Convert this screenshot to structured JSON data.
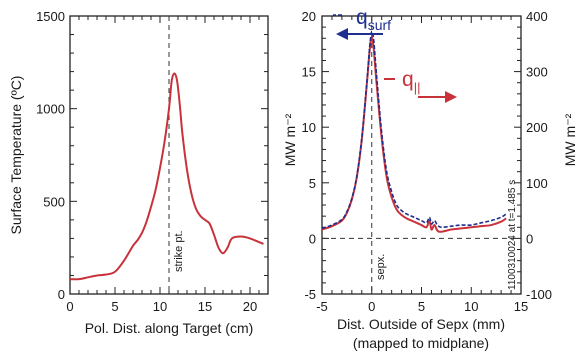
{
  "chart_data": [
    {
      "type": "line",
      "ylabel": "Surface Temperature (ºC)",
      "xlabel": "Pol. Dist. along Target (cm)",
      "xlim": [
        0,
        22
      ],
      "ylim": [
        0,
        1500
      ],
      "xticks": [
        "0",
        "5",
        "10",
        "15",
        "20"
      ],
      "yticks": [
        "0",
        "500",
        "1000",
        "1500"
      ],
      "annotations": {
        "vline_label": "strike pt.",
        "vline_x": 11.0
      },
      "series": [
        {
          "color": "#c8323a",
          "x": [
            0,
            1,
            2,
            3,
            4,
            5,
            6,
            7,
            7.5,
            8,
            8.5,
            9,
            9.5,
            10,
            10.5,
            11,
            11.3,
            11.6,
            11.9,
            12.2,
            12.5,
            13,
            13.5,
            14,
            14.5,
            15,
            15.5,
            16,
            16.5,
            17,
            17.5,
            18,
            19,
            20,
            21,
            21.5
          ],
          "y": [
            80,
            80,
            90,
            100,
            105,
            120,
            180,
            260,
            290,
            330,
            390,
            470,
            560,
            680,
            820,
            1000,
            1150,
            1190,
            1150,
            1020,
            860,
            670,
            540,
            460,
            420,
            400,
            380,
            320,
            250,
            220,
            250,
            300,
            310,
            300,
            280,
            270
          ]
        }
      ]
    },
    {
      "type": "line",
      "ylabel": "MW m⁻²",
      "y2label": "MW m⁻²",
      "xlabel": "Dist. Outside of Sepx (mm)",
      "xlabel2": "(mapped to midplane)",
      "xlim": [
        -5,
        15
      ],
      "ylim": [
        -5,
        20
      ],
      "y2lim": [
        -100,
        400
      ],
      "xticks": [
        "-5",
        "0",
        "5",
        "10",
        "15"
      ],
      "yticks": [
        "-5",
        "0",
        "5",
        "10",
        "15",
        "20"
      ],
      "y2ticks": [
        "-100",
        "0",
        "100",
        "200",
        "300",
        "400"
      ],
      "annotations": {
        "vline_label": "sepx.",
        "vline_x": 0,
        "shot_text": "1100310024 at t=1.485 s"
      },
      "series": [
        {
          "name": "q",
          "name_sub": "surf",
          "axis": "left",
          "color": "#1f2f8f",
          "x": [
            -5,
            -4,
            -3,
            -2.5,
            -2,
            -1.5,
            -1,
            -0.5,
            -0.2,
            0,
            0.2,
            0.5,
            1,
            1.5,
            2,
            2.5,
            3,
            3.5,
            4,
            4.5,
            5,
            5.5,
            5.8,
            6,
            6.3,
            6.6,
            7,
            8,
            9,
            10,
            11,
            12,
            13,
            13.5
          ],
          "y": [
            0.9,
            1.2,
            1.7,
            2.4,
            3.6,
            5.6,
            9.0,
            14.0,
            17.3,
            18.6,
            17.8,
            14.5,
            9.5,
            6.0,
            4.2,
            3.0,
            2.5,
            2.2,
            2.0,
            1.8,
            1.6,
            1.4,
            1.9,
            1.3,
            1.6,
            1.2,
            1.0,
            1.1,
            1.2,
            1.2,
            1.4,
            1.6,
            1.9,
            2.2
          ]
        },
        {
          "name": "q",
          "name_sub": "||",
          "axis": "right",
          "color": "#c8323a",
          "x": [
            -5,
            -4,
            -3,
            -2.5,
            -2,
            -1.5,
            -1,
            -0.5,
            -0.2,
            0,
            0.2,
            0.5,
            1,
            1.5,
            2,
            2.5,
            3,
            3.5,
            4,
            4.5,
            5,
            5.5,
            5.8,
            6,
            6.3,
            6.6,
            7,
            8,
            9,
            10,
            11,
            12,
            13,
            13.5
          ],
          "y": [
            16,
            22,
            32,
            46,
            70,
            110,
            178,
            276,
            340,
            362,
            340,
            276,
            180,
            110,
            74,
            52,
            42,
            36,
            32,
            28,
            24,
            20,
            32,
            16,
            24,
            14,
            12,
            16,
            18,
            20,
            22,
            24,
            30,
            36
          ]
        }
      ]
    }
  ]
}
